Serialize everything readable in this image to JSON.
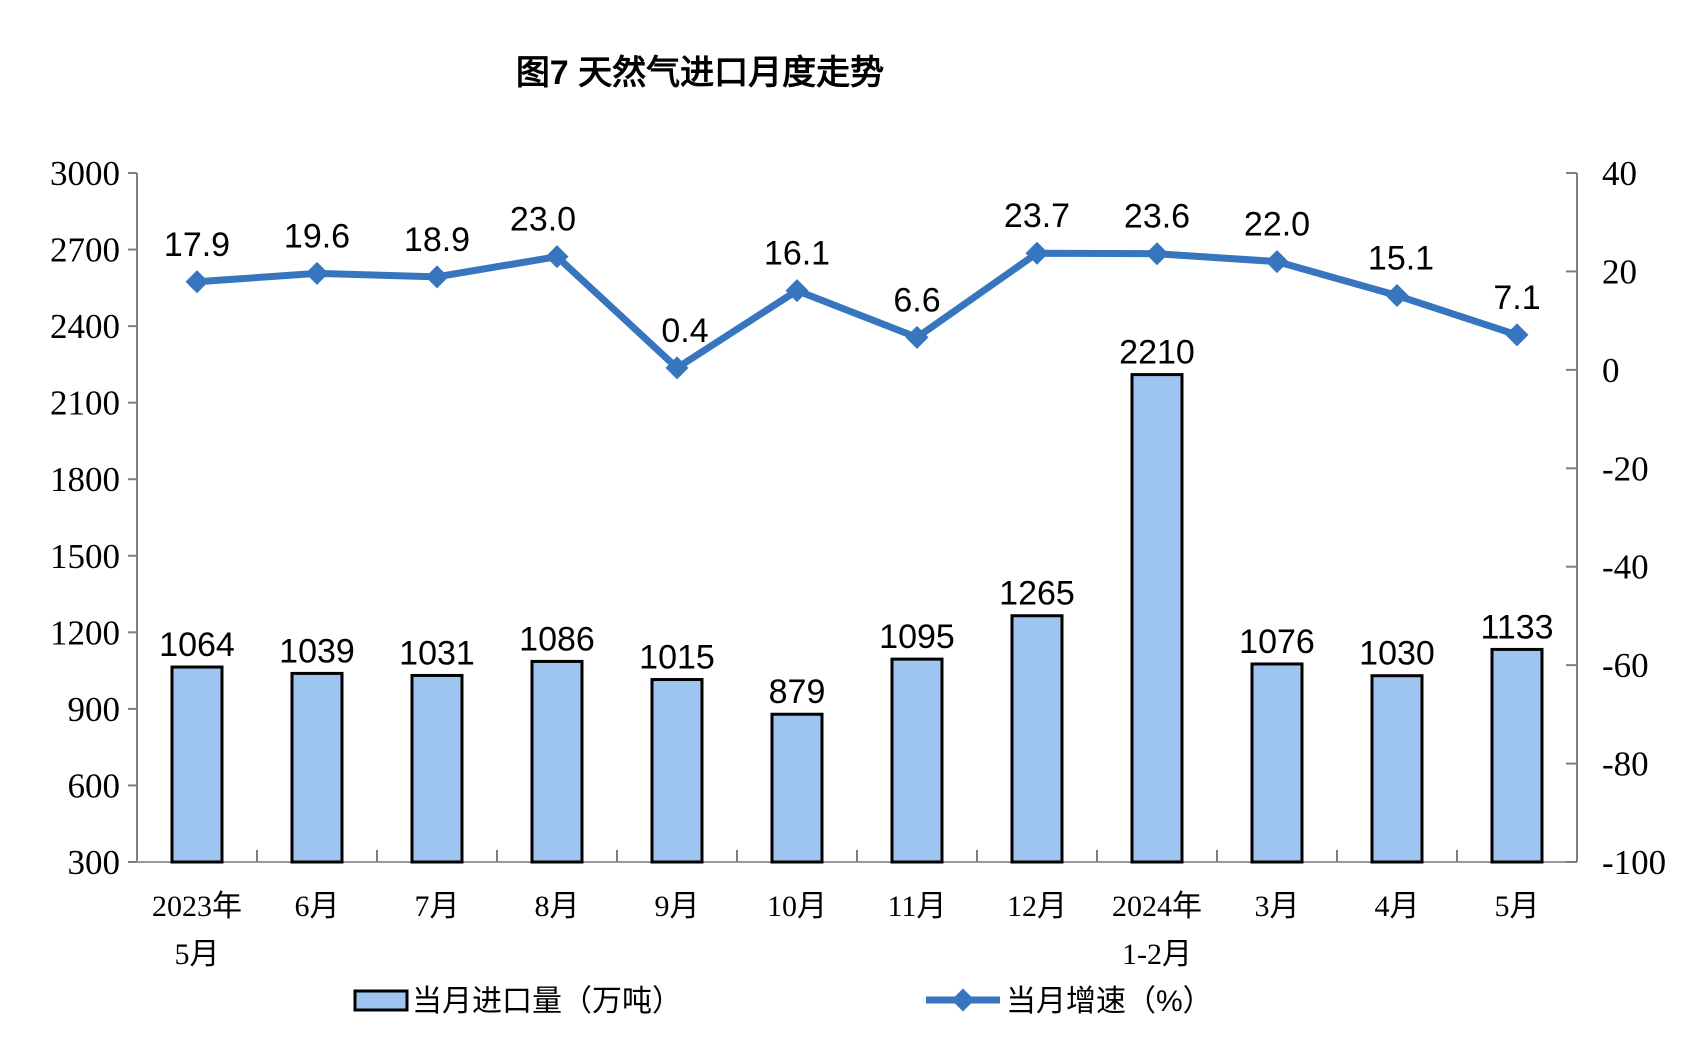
{
  "title": "图7 天然气进口月度走势",
  "chart_data": {
    "type": "combo-bar-line",
    "categories": [
      [
        "2023年",
        "5月"
      ],
      [
        "6月"
      ],
      [
        "7月"
      ],
      [
        "8月"
      ],
      [
        "9月"
      ],
      [
        "10月"
      ],
      [
        "11月"
      ],
      [
        "12月"
      ],
      [
        "2024年",
        "1-2月"
      ],
      [
        "3月"
      ],
      [
        "4月"
      ],
      [
        "5月"
      ]
    ],
    "series": [
      {
        "name": "当月进口量（万吨）",
        "type": "bar",
        "axis": "left",
        "values": [
          1064,
          1039,
          1031,
          1086,
          1015,
          879,
          1095,
          1265,
          2210,
          1076,
          1030,
          1133
        ],
        "data_labels": [
          "1064",
          "1039",
          "1031",
          "1086",
          "1015",
          "879",
          "1095",
          "1265",
          "2210",
          "1076",
          "1030",
          "1133"
        ]
      },
      {
        "name": "当月增速（%）",
        "type": "line",
        "axis": "right",
        "marker": "diamond",
        "values": [
          17.9,
          19.6,
          18.9,
          23.0,
          0.4,
          16.1,
          6.6,
          23.7,
          23.6,
          22.0,
          15.1,
          7.1
        ],
        "data_labels": [
          "17.9",
          "19.6",
          "18.9",
          "23.0",
          "0.4",
          "16.1",
          "6.6",
          "23.7",
          "23.6",
          "22.0",
          "15.1",
          "7.1"
        ]
      }
    ],
    "left_axis": {
      "min": 300,
      "max": 3000,
      "step": 300,
      "tick_labels": [
        "3000",
        "2700",
        "2400",
        "2100",
        "1800",
        "1500",
        "1200",
        "900",
        "600",
        "300"
      ]
    },
    "right_axis": {
      "min": -100,
      "max": 40,
      "step": 20,
      "tick_labels": [
        "40",
        "20",
        "0",
        "-20",
        "-40",
        "-60",
        "-80",
        "-100"
      ]
    },
    "grid": "off",
    "legend_position": "bottom",
    "legend": [
      {
        "label": "当月进口量（万吨）",
        "swatch": "bar"
      },
      {
        "label": "当月增速（%）",
        "swatch": "line"
      }
    ],
    "colors": {
      "bar_fill": "#9DC5EF",
      "bar_stroke": "#000000",
      "line": "#3776BE",
      "axis": "#7F7F7F",
      "text": "#000000"
    }
  }
}
